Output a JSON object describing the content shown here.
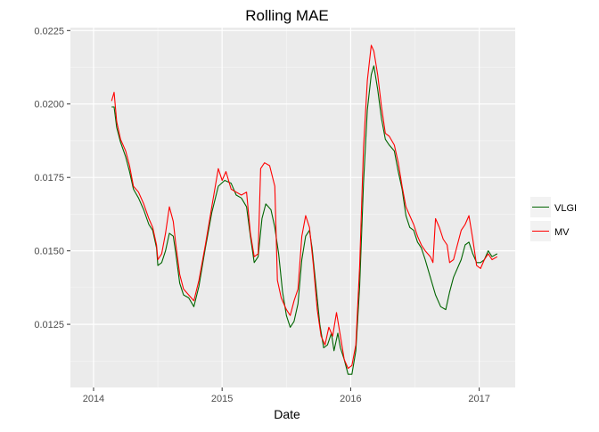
{
  "chart_data": {
    "type": "line",
    "title": "Rolling MAE",
    "xlabel": "Date",
    "ylabel": "",
    "xlim": [
      2013.82,
      2017.28
    ],
    "ylim": [
      0.01035,
      0.0226
    ],
    "x_ticks": [
      2014,
      2015,
      2016,
      2017
    ],
    "x_tick_labels": [
      "2014",
      "2015",
      "2016",
      "2017"
    ],
    "y_ticks": [
      0.0125,
      0.015,
      0.0175,
      0.02,
      0.0225
    ],
    "y_tick_labels": [
      "0.0125",
      "0.0150",
      "0.0175",
      "0.0200",
      "0.0225"
    ],
    "grid": true,
    "legend_position": "right",
    "series": [
      {
        "name": "VLGI",
        "color": "#006400",
        "points": [
          [
            2014.14,
            0.0199
          ],
          [
            2014.16,
            0.0199
          ],
          [
            2014.18,
            0.0192
          ],
          [
            2014.21,
            0.0187
          ],
          [
            2014.25,
            0.0182
          ],
          [
            2014.28,
            0.0177
          ],
          [
            2014.31,
            0.0171
          ],
          [
            2014.35,
            0.0168
          ],
          [
            2014.39,
            0.0164
          ],
          [
            2014.43,
            0.0159
          ],
          [
            2014.46,
            0.0157
          ],
          [
            2014.49,
            0.0151
          ],
          [
            2014.5,
            0.0145
          ],
          [
            2014.53,
            0.0146
          ],
          [
            2014.56,
            0.015
          ],
          [
            2014.59,
            0.0156
          ],
          [
            2014.62,
            0.0155
          ],
          [
            2014.64,
            0.0149
          ],
          [
            2014.67,
            0.0139
          ],
          [
            2014.7,
            0.0135
          ],
          [
            2014.74,
            0.0134
          ],
          [
            2014.78,
            0.0131
          ],
          [
            2014.82,
            0.0138
          ],
          [
            2014.87,
            0.0151
          ],
          [
            2014.92,
            0.0163
          ],
          [
            2014.97,
            0.0172
          ],
          [
            2015.02,
            0.0174
          ],
          [
            2015.07,
            0.0173
          ],
          [
            2015.11,
            0.0169
          ],
          [
            2015.15,
            0.0168
          ],
          [
            2015.19,
            0.0165
          ],
          [
            2015.22,
            0.0155
          ],
          [
            2015.25,
            0.0146
          ],
          [
            2015.28,
            0.0148
          ],
          [
            2015.31,
            0.0161
          ],
          [
            2015.34,
            0.0166
          ],
          [
            2015.38,
            0.0164
          ],
          [
            2015.41,
            0.0158
          ],
          [
            2015.44,
            0.0149
          ],
          [
            2015.47,
            0.0136
          ],
          [
            2015.5,
            0.0128
          ],
          [
            2015.53,
            0.0124
          ],
          [
            2015.56,
            0.0126
          ],
          [
            2015.59,
            0.0132
          ],
          [
            2015.62,
            0.0147
          ],
          [
            2015.65,
            0.0155
          ],
          [
            2015.68,
            0.0157
          ],
          [
            2015.7,
            0.0151
          ],
          [
            2015.73,
            0.0138
          ],
          [
            2015.76,
            0.0125
          ],
          [
            2015.79,
            0.0117
          ],
          [
            2015.82,
            0.0118
          ],
          [
            2015.85,
            0.0122
          ],
          [
            2015.87,
            0.0116
          ],
          [
            2015.9,
            0.0122
          ],
          [
            2015.92,
            0.0117
          ],
          [
            2015.95,
            0.0113
          ],
          [
            2015.98,
            0.0108
          ],
          [
            2016.01,
            0.0108
          ],
          [
            2016.04,
            0.0116
          ],
          [
            2016.07,
            0.0138
          ],
          [
            2016.1,
            0.0173
          ],
          [
            2016.13,
            0.0198
          ],
          [
            2016.16,
            0.021
          ],
          [
            2016.18,
            0.0213
          ],
          [
            2016.21,
            0.0205
          ],
          [
            2016.24,
            0.0195
          ],
          [
            2016.27,
            0.0188
          ],
          [
            2016.3,
            0.0186
          ],
          [
            2016.34,
            0.0184
          ],
          [
            2016.37,
            0.0177
          ],
          [
            2016.4,
            0.0171
          ],
          [
            2016.43,
            0.0162
          ],
          [
            2016.46,
            0.0158
          ],
          [
            2016.49,
            0.0157
          ],
          [
            2016.52,
            0.0153
          ],
          [
            2016.55,
            0.0151
          ],
          [
            2016.58,
            0.0147
          ],
          [
            2016.62,
            0.0141
          ],
          [
            2016.66,
            0.0135
          ],
          [
            2016.7,
            0.0131
          ],
          [
            2016.74,
            0.013
          ],
          [
            2016.77,
            0.0136
          ],
          [
            2016.8,
            0.0141
          ],
          [
            2016.83,
            0.0144
          ],
          [
            2016.86,
            0.0147
          ],
          [
            2016.89,
            0.0152
          ],
          [
            2016.92,
            0.0153
          ],
          [
            2016.95,
            0.0149
          ],
          [
            2016.98,
            0.0146
          ],
          [
            2017.01,
            0.0146
          ],
          [
            2017.04,
            0.0147
          ],
          [
            2017.07,
            0.015
          ],
          [
            2017.1,
            0.0148
          ],
          [
            2017.14,
            0.0149
          ]
        ]
      },
      {
        "name": "MV",
        "color": "#ff0000",
        "points": [
          [
            2014.14,
            0.0201
          ],
          [
            2014.16,
            0.0204
          ],
          [
            2014.18,
            0.0194
          ],
          [
            2014.21,
            0.0188
          ],
          [
            2014.25,
            0.0184
          ],
          [
            2014.28,
            0.0179
          ],
          [
            2014.31,
            0.0172
          ],
          [
            2014.35,
            0.017
          ],
          [
            2014.39,
            0.0166
          ],
          [
            2014.43,
            0.0161
          ],
          [
            2014.46,
            0.0158
          ],
          [
            2014.49,
            0.0152
          ],
          [
            2014.5,
            0.0147
          ],
          [
            2014.53,
            0.0149
          ],
          [
            2014.56,
            0.0156
          ],
          [
            2014.59,
            0.0165
          ],
          [
            2014.62,
            0.016
          ],
          [
            2014.64,
            0.0152
          ],
          [
            2014.67,
            0.0142
          ],
          [
            2014.7,
            0.0137
          ],
          [
            2014.74,
            0.0135
          ],
          [
            2014.78,
            0.0133
          ],
          [
            2014.82,
            0.014
          ],
          [
            2014.87,
            0.0152
          ],
          [
            2014.92,
            0.0165
          ],
          [
            2014.97,
            0.0178
          ],
          [
            2015.0,
            0.0174
          ],
          [
            2015.03,
            0.0177
          ],
          [
            2015.07,
            0.0171
          ],
          [
            2015.11,
            0.017
          ],
          [
            2015.15,
            0.0169
          ],
          [
            2015.19,
            0.017
          ],
          [
            2015.22,
            0.0156
          ],
          [
            2015.25,
            0.0148
          ],
          [
            2015.28,
            0.0149
          ],
          [
            2015.3,
            0.0178
          ],
          [
            2015.33,
            0.018
          ],
          [
            2015.37,
            0.0179
          ],
          [
            2015.41,
            0.0172
          ],
          [
            2015.43,
            0.014
          ],
          [
            2015.46,
            0.0134
          ],
          [
            2015.5,
            0.013
          ],
          [
            2015.53,
            0.0128
          ],
          [
            2015.56,
            0.0133
          ],
          [
            2015.59,
            0.0137
          ],
          [
            2015.62,
            0.0155
          ],
          [
            2015.65,
            0.0162
          ],
          [
            2015.68,
            0.0158
          ],
          [
            2015.71,
            0.0145
          ],
          [
            2015.74,
            0.013
          ],
          [
            2015.77,
            0.0121
          ],
          [
            2015.8,
            0.0118
          ],
          [
            2015.83,
            0.0124
          ],
          [
            2015.86,
            0.0121
          ],
          [
            2015.89,
            0.0129
          ],
          [
            2015.92,
            0.0121
          ],
          [
            2015.95,
            0.0113
          ],
          [
            2015.98,
            0.011
          ],
          [
            2016.01,
            0.0111
          ],
          [
            2016.04,
            0.0118
          ],
          [
            2016.07,
            0.0145
          ],
          [
            2016.1,
            0.0185
          ],
          [
            2016.13,
            0.0208
          ],
          [
            2016.16,
            0.022
          ],
          [
            2016.18,
            0.0218
          ],
          [
            2016.21,
            0.021
          ],
          [
            2016.24,
            0.0199
          ],
          [
            2016.27,
            0.019
          ],
          [
            2016.3,
            0.0189
          ],
          [
            2016.34,
            0.0186
          ],
          [
            2016.37,
            0.018
          ],
          [
            2016.4,
            0.0172
          ],
          [
            2016.43,
            0.0165
          ],
          [
            2016.46,
            0.0162
          ],
          [
            2016.49,
            0.0159
          ],
          [
            2016.52,
            0.0155
          ],
          [
            2016.55,
            0.0152
          ],
          [
            2016.58,
            0.015
          ],
          [
            2016.62,
            0.0148
          ],
          [
            2016.64,
            0.0146
          ],
          [
            2016.66,
            0.0161
          ],
          [
            2016.69,
            0.0158
          ],
          [
            2016.72,
            0.0154
          ],
          [
            2016.75,
            0.0152
          ],
          [
            2016.77,
            0.0146
          ],
          [
            2016.8,
            0.0147
          ],
          [
            2016.83,
            0.0152
          ],
          [
            2016.86,
            0.0157
          ],
          [
            2016.89,
            0.0159
          ],
          [
            2016.92,
            0.0162
          ],
          [
            2016.95,
            0.0154
          ],
          [
            2016.98,
            0.0145
          ],
          [
            2017.01,
            0.0144
          ],
          [
            2017.04,
            0.0147
          ],
          [
            2017.07,
            0.0149
          ],
          [
            2017.1,
            0.0147
          ],
          [
            2017.14,
            0.0148
          ]
        ]
      }
    ]
  }
}
